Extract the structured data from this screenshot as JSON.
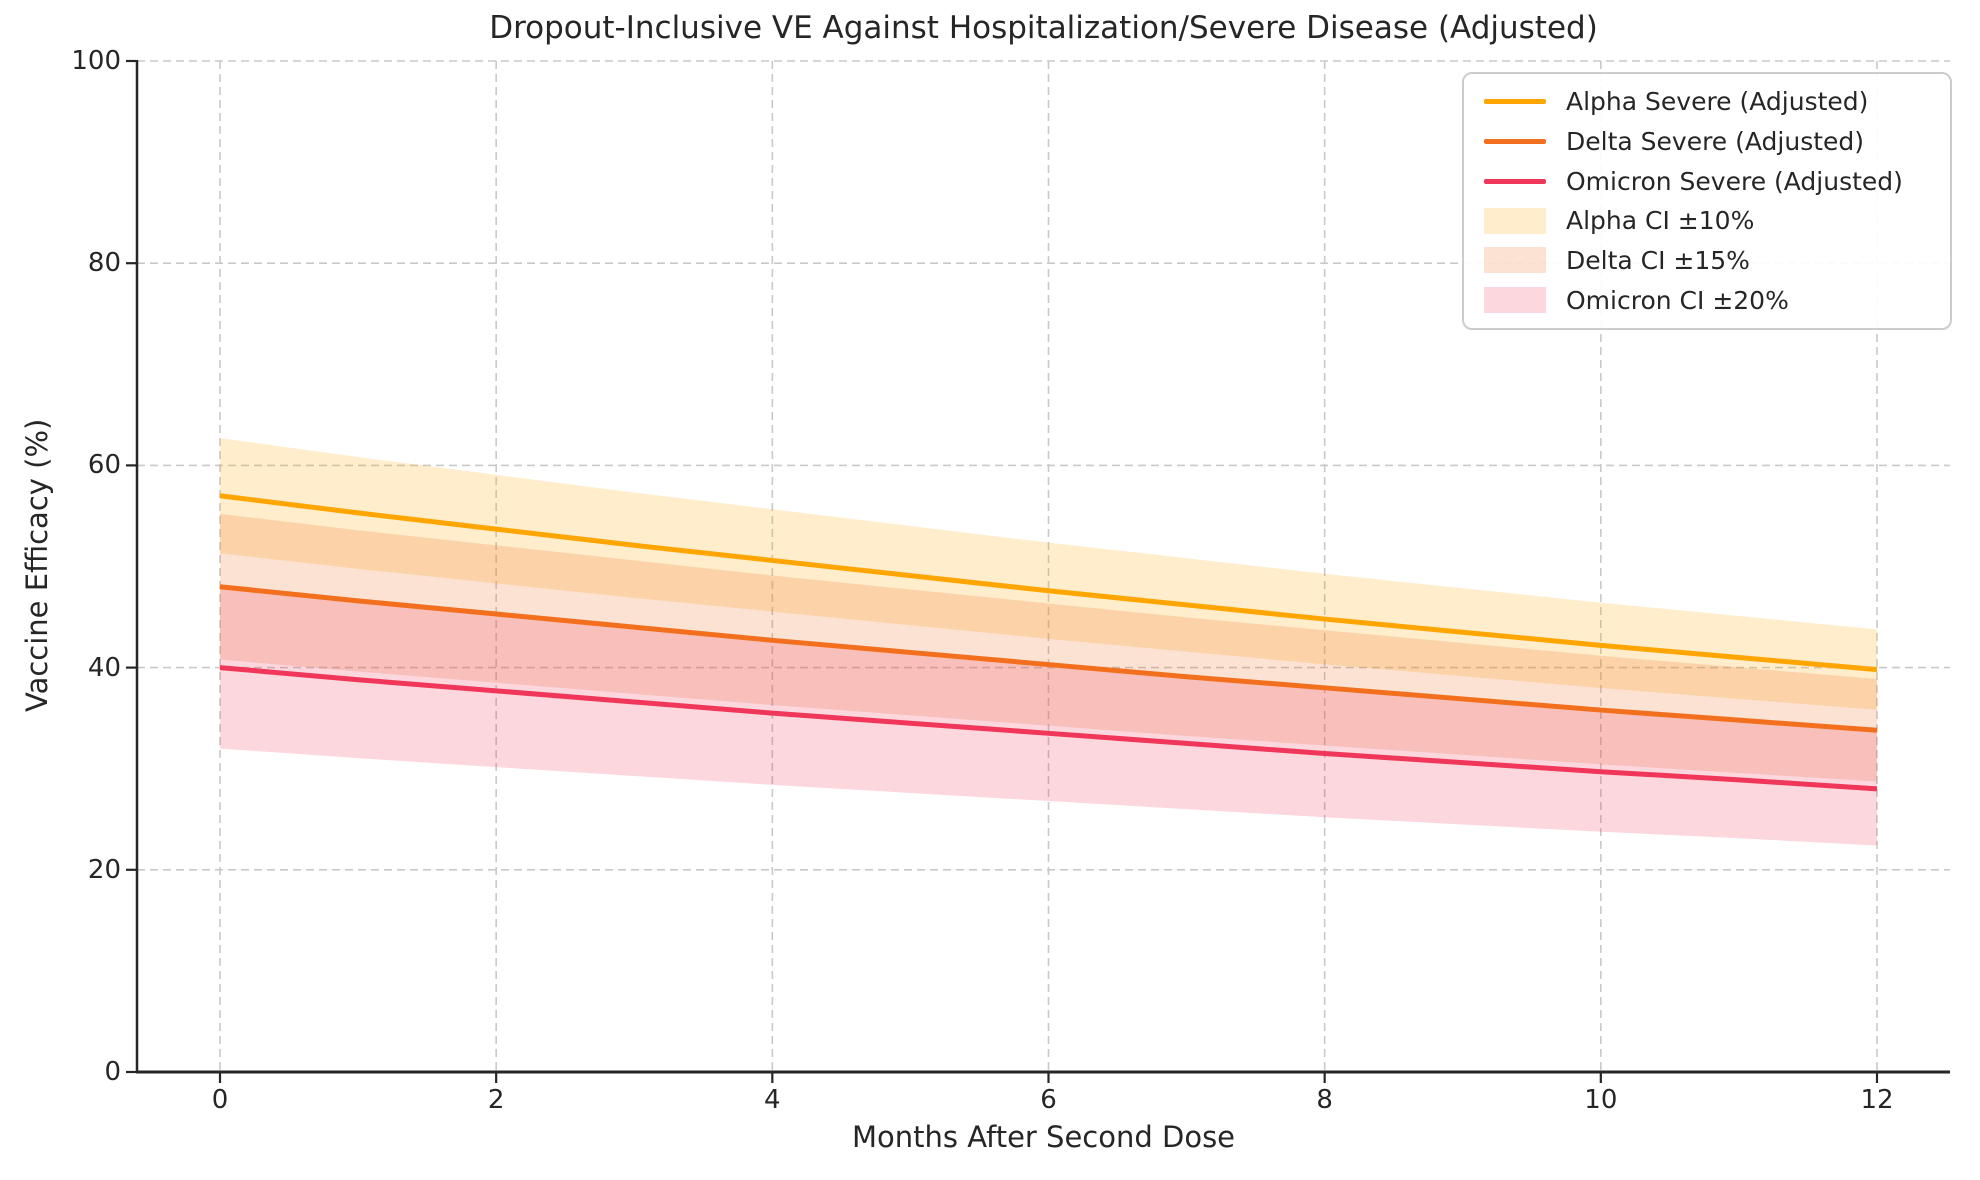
{
  "figure": {
    "title": "Dropout-Inclusive VE Against Hospitalization/Severe Disease (Adjusted)",
    "xlabel": "Months After Second Dose",
    "ylabel": "Vaccine Efficacy (%)"
  },
  "colors": {
    "alpha_line": "#FFA500",
    "delta_line": "#F2701D",
    "omicron_line": "#F03659",
    "band_fill_opacity": 0.2,
    "grid": "#C9C9C9",
    "spine": "#262626",
    "text": "#262626",
    "legend_border": "#CCCCCC",
    "background": "#FFFFFF"
  },
  "chart_data": {
    "type": "line",
    "title": "Dropout-Inclusive VE Against Hospitalization/Severe Disease (Adjusted)",
    "xlabel": "Months After Second Dose",
    "ylabel": "Vaccine Efficacy (%)",
    "x": [
      0,
      1,
      2,
      3,
      4,
      5,
      6,
      7,
      8,
      9,
      10,
      11,
      12
    ],
    "xticks": [
      0,
      2,
      4,
      6,
      8,
      10,
      12
    ],
    "yticks": [
      0,
      20,
      40,
      60,
      80,
      100
    ],
    "ylim": [
      0,
      100
    ],
    "xlim_months_shown": [
      0,
      12
    ],
    "grid": "dashed",
    "legend_position": "upper right",
    "series": [
      {
        "name": "Alpha Severe (Adjusted)",
        "color": "#FFA500",
        "ci_pct": 10,
        "values": [
          57.0,
          55.3,
          53.7,
          52.1,
          50.6,
          49.1,
          47.6,
          46.2,
          44.8,
          43.5,
          42.2,
          41.0,
          39.8
        ]
      },
      {
        "name": "Delta Severe (Adjusted)",
        "color": "#F2701D",
        "ci_pct": 15,
        "values": [
          48.0,
          46.6,
          45.3,
          44.0,
          42.7,
          41.5,
          40.3,
          39.1,
          38.0,
          36.9,
          35.8,
          34.8,
          33.8
        ]
      },
      {
        "name": "Omicron Severe (Adjusted)",
        "color": "#F03659",
        "ci_pct": 20,
        "values": [
          40.0,
          38.8,
          37.7,
          36.6,
          35.5,
          34.5,
          33.5,
          32.5,
          31.5,
          30.6,
          29.7,
          28.9,
          28.0
        ]
      }
    ],
    "legend": [
      {
        "label": "Alpha Severe (Adjusted)",
        "swatch": "line",
        "color": "#FFA500"
      },
      {
        "label": "Delta Severe (Adjusted)",
        "swatch": "line",
        "color": "#F2701D"
      },
      {
        "label": "Omicron Severe (Adjusted)",
        "swatch": "line",
        "color": "#F03659"
      },
      {
        "label": "Alpha CI ±10%",
        "swatch": "patch",
        "color": "#FFA500"
      },
      {
        "label": "Delta CI ±15%",
        "swatch": "patch",
        "color": "#F2701D"
      },
      {
        "label": "Omicron CI ±20%",
        "swatch": "patch",
        "color": "#F03659"
      }
    ]
  }
}
